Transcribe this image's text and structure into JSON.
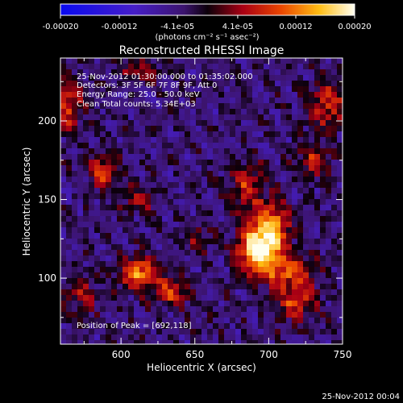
{
  "chart_data": {
    "type": "heatmap",
    "title": "Reconstructed RHESSI Image",
    "xlabel": "Heliocentric X (arcsec)",
    "ylabel": "Heliocentric Y (arcsec)",
    "xlim": [
      559,
      750
    ],
    "ylim": [
      58,
      240
    ],
    "x_ticks": [
      600,
      650,
      700,
      750
    ],
    "y_ticks": [
      100,
      150,
      200
    ],
    "x_tick_labels": [
      "600",
      "650",
      "700",
      "750"
    ],
    "y_tick_labels": [
      "100",
      "150",
      "200"
    ],
    "info_lines": [
      "25-Nov-2012 01:30:00.000 to 01:35:02.000",
      "Detectors: 3F 5F 6F 7F 8F 9F, Att 0",
      "Energy Range: 25.0 - 50.0 keV",
      "Clean    Total counts: 5.34E+03"
    ],
    "peak_label": "Position of Peak = [692,118]",
    "peak": {
      "x": 692,
      "y": 118
    },
    "colorbar": {
      "tick_labels": [
        "-0.00020",
        "-0.00012",
        "-4.1e-05",
        "4.1e-05",
        "0.00012",
        "0.00020"
      ],
      "ticks": [
        -0.0002,
        -0.00012,
        -4.1e-05,
        4.1e-05,
        0.00012,
        0.0002
      ],
      "range": [
        -0.0002,
        0.0002
      ],
      "unit_label": "(photons cm⁻² s⁻¹ asec⁻²)"
    },
    "sources": [
      {
        "x": 692,
        "y": 118,
        "amp": 1.0,
        "sx": 9,
        "sy": 11
      },
      {
        "x": 703,
        "y": 132,
        "amp": 0.7,
        "sx": 8,
        "sy": 12
      },
      {
        "x": 714,
        "y": 104,
        "amp": 0.55,
        "sx": 12,
        "sy": 7
      },
      {
        "x": 718,
        "y": 85,
        "amp": 0.5,
        "sx": 10,
        "sy": 8
      },
      {
        "x": 685,
        "y": 158,
        "amp": 0.45,
        "sx": 8,
        "sy": 11
      },
      {
        "x": 612,
        "y": 103,
        "amp": 0.72,
        "sx": 9,
        "sy": 7
      },
      {
        "x": 634,
        "y": 91,
        "amp": 0.5,
        "sx": 9,
        "sy": 6
      },
      {
        "x": 588,
        "y": 168,
        "amp": 0.5,
        "sx": 7,
        "sy": 8
      },
      {
        "x": 565,
        "y": 210,
        "amp": 0.55,
        "sx": 6,
        "sy": 12
      },
      {
        "x": 612,
        "y": 232,
        "amp": 0.45,
        "sx": 8,
        "sy": 5
      },
      {
        "x": 572,
        "y": 90,
        "amp": 0.35,
        "sx": 7,
        "sy": 9
      },
      {
        "x": 740,
        "y": 210,
        "amp": 0.5,
        "sx": 9,
        "sy": 10
      },
      {
        "x": 730,
        "y": 175,
        "amp": 0.42,
        "sx": 8,
        "sy": 8
      },
      {
        "x": 650,
        "y": 125,
        "amp": 0.3,
        "sx": 7,
        "sy": 7
      },
      {
        "x": 612,
        "y": 150,
        "amp": 0.32,
        "sx": 8,
        "sy": 6
      }
    ]
  },
  "footer": {
    "timestamp": "25-Nov-2012 00:04"
  }
}
